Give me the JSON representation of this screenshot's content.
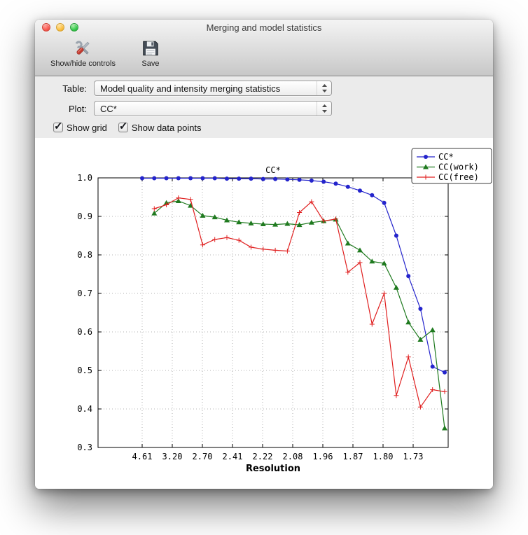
{
  "window": {
    "title": "Merging and model statistics"
  },
  "toolbar": {
    "buttons": [
      {
        "label": "Show/hide controls",
        "icon": "tools-icon"
      },
      {
        "label": "Save",
        "icon": "save-icon"
      }
    ]
  },
  "controls": {
    "table_label": "Table:",
    "table_value": "Model quality and intensity merging statistics",
    "plot_label": "Plot:",
    "plot_value": "CC*",
    "checkboxes": [
      {
        "label": "Show grid",
        "checked": true
      },
      {
        "label": "Show data points",
        "checked": true
      }
    ]
  },
  "icons": {
    "check_glyph": "✓"
  },
  "chart_data": {
    "type": "line",
    "title": "CC*",
    "xlabel": "Resolution",
    "ylabel": "",
    "ylim": [
      0.3,
      1.0
    ],
    "yticks": [
      0.3,
      0.4,
      0.5,
      0.6,
      0.7,
      0.8,
      0.9,
      1.0
    ],
    "xticklabels": [
      "4.61",
      "3.20",
      "2.70",
      "2.41",
      "2.22",
      "2.08",
      "1.96",
      "1.87",
      "1.80",
      "1.73"
    ],
    "grid": true,
    "show_data_points": true,
    "legend_position": "upper right",
    "series": [
      {
        "name": "CC*",
        "color": "#2424cc",
        "marker": "circle",
        "values": [
          0.999,
          0.999,
          0.999,
          0.999,
          0.999,
          0.999,
          0.999,
          0.998,
          0.998,
          0.998,
          0.997,
          0.997,
          0.996,
          0.995,
          0.993,
          0.99,
          0.985,
          0.977,
          0.967,
          0.955,
          0.935,
          0.85,
          0.745,
          0.66,
          0.51,
          0.495
        ]
      },
      {
        "name": "CC(work)",
        "color": "#1f7a1f",
        "marker": "triangle",
        "values": [
          null,
          0.908,
          0.935,
          0.94,
          0.928,
          0.902,
          0.898,
          0.89,
          0.885,
          0.882,
          0.88,
          0.879,
          0.881,
          0.878,
          0.884,
          0.888,
          0.892,
          0.83,
          0.812,
          0.783,
          0.778,
          0.715,
          0.625,
          0.58,
          0.605,
          0.35
        ]
      },
      {
        "name": "CC(free)",
        "color": "#e02020",
        "marker": "plus",
        "values": [
          null,
          0.92,
          0.93,
          0.948,
          0.944,
          0.826,
          0.84,
          0.845,
          0.838,
          0.82,
          0.815,
          0.812,
          0.81,
          0.91,
          0.938,
          0.888,
          0.893,
          0.755,
          0.78,
          0.62,
          0.7,
          0.435,
          0.535,
          0.405,
          0.45,
          0.445
        ]
      }
    ]
  }
}
